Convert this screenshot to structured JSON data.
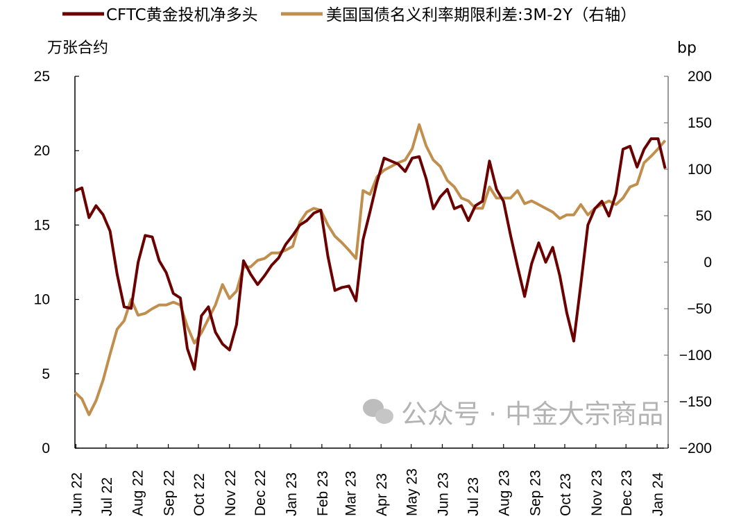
{
  "chart_data": {
    "type": "line",
    "title": "",
    "xlabel": "",
    "ylabel_left": "万张合约",
    "ylabel_right": "bp",
    "ylim_left": [
      0,
      25
    ],
    "yticks_left": [
      0,
      5,
      10,
      15,
      20,
      25
    ],
    "ylim_right": [
      -200,
      200
    ],
    "yticks_right": [
      -200,
      -150,
      -100,
      -50,
      0,
      50,
      100,
      150,
      200
    ],
    "xlim": [
      "2022-05-31",
      "2024-01-12"
    ],
    "xtick_labels": [
      "Jun 22",
      "Jul 22",
      "Aug 22",
      "Sep 22",
      "Oct 22",
      "Nov 22",
      "Dec 22",
      "Jan 23",
      "Feb 23",
      "Mar 23",
      "Apr 23",
      "May 23",
      "Jun 23",
      "Jul 23",
      "Aug 23",
      "Sep 23",
      "Oct 23",
      "Nov 23",
      "Dec 23",
      "Jan 24"
    ],
    "xtick_dates": [
      "2022-06-01",
      "2022-07-01",
      "2022-08-01",
      "2022-09-01",
      "2022-10-01",
      "2022-11-01",
      "2022-12-01",
      "2023-01-01",
      "2023-02-01",
      "2023-03-01",
      "2023-04-01",
      "2023-05-01",
      "2023-06-01",
      "2023-07-01",
      "2023-08-01",
      "2023-09-01",
      "2023-10-01",
      "2023-11-01",
      "2023-12-01",
      "2024-01-01"
    ],
    "grid": false,
    "legend_placement": "top",
    "x": [
      "2022-05-31",
      "2022-06-07",
      "2022-06-14",
      "2022-06-21",
      "2022-06-28",
      "2022-07-05",
      "2022-07-12",
      "2022-07-19",
      "2022-07-26",
      "2022-08-02",
      "2022-08-09",
      "2022-08-16",
      "2022-08-23",
      "2022-08-30",
      "2022-09-06",
      "2022-09-13",
      "2022-09-20",
      "2022-09-27",
      "2022-10-04",
      "2022-10-11",
      "2022-10-18",
      "2022-10-25",
      "2022-11-01",
      "2022-11-08",
      "2022-11-15",
      "2022-11-22",
      "2022-11-29",
      "2022-12-06",
      "2022-12-13",
      "2022-12-20",
      "2022-12-27",
      "2023-01-03",
      "2023-01-10",
      "2023-01-17",
      "2023-01-24",
      "2023-01-31",
      "2023-02-07",
      "2023-02-14",
      "2023-02-21",
      "2023-02-28",
      "2023-03-07",
      "2023-03-14",
      "2023-03-21",
      "2023-03-28",
      "2023-04-04",
      "2023-04-11",
      "2023-04-18",
      "2023-04-25",
      "2023-05-02",
      "2023-05-09",
      "2023-05-16",
      "2023-05-23",
      "2023-05-30",
      "2023-06-06",
      "2023-06-13",
      "2023-06-20",
      "2023-06-27",
      "2023-07-04",
      "2023-07-11",
      "2023-07-18",
      "2023-07-25",
      "2023-08-01",
      "2023-08-08",
      "2023-08-15",
      "2023-08-22",
      "2023-08-29",
      "2023-09-05",
      "2023-09-12",
      "2023-09-19",
      "2023-09-26",
      "2023-10-03",
      "2023-10-10",
      "2023-10-17",
      "2023-10-24",
      "2023-10-31",
      "2023-11-07",
      "2023-11-14",
      "2023-11-21",
      "2023-11-28",
      "2023-12-05",
      "2023-12-12",
      "2023-12-19",
      "2023-12-26",
      "2024-01-02",
      "2024-01-09"
    ],
    "series": [
      {
        "name": "CFTC黄金投机净多头",
        "axis": "left",
        "color": "#6b0000",
        "values": [
          17.3,
          17.5,
          15.5,
          16.3,
          15.7,
          14.6,
          11.7,
          9.5,
          9.4,
          12.5,
          14.3,
          14.2,
          12.6,
          11.8,
          10.4,
          10.1,
          6.7,
          5.3,
          8.9,
          9.5,
          7.8,
          7.0,
          6.6,
          8.3,
          12.6,
          11.7,
          11.0,
          11.6,
          12.3,
          12.8,
          13.7,
          14.3,
          15.0,
          15.3,
          15.8,
          16.0,
          12.9,
          10.6,
          10.8,
          10.9,
          9.9,
          14.0,
          15.9,
          17.9,
          19.5,
          19.3,
          19.1,
          18.6,
          19.5,
          19.6,
          18.1,
          16.1,
          16.9,
          17.4,
          16.1,
          16.3,
          15.3,
          16.3,
          16.6,
          19.3,
          17.4,
          16.6,
          14.3,
          12.2,
          10.2,
          12.4,
          13.8,
          12.5,
          13.5,
          11.6,
          9.1,
          7.2,
          11.0,
          15.0,
          16.1,
          16.6,
          15.6,
          17.1,
          20.1,
          20.3,
          18.9,
          20.1,
          20.8,
          20.8,
          18.8
        ]
      },
      {
        "name": "美国国债名义利率期限利差:3M-2Y（右轴）",
        "axis": "right",
        "color": "#c08f4e",
        "values": [
          -140,
          -147,
          -164,
          -149,
          -127,
          -99,
          -72,
          -63,
          -40,
          -57,
          -55,
          -50,
          -46,
          -46,
          -43,
          -46,
          -69,
          -87,
          -76,
          -61,
          -46,
          -24,
          -39,
          -31,
          -5,
          -5,
          2,
          4,
          10,
          10,
          13,
          17,
          43,
          54,
          58,
          56,
          40,
          28,
          21,
          13,
          4,
          77,
          73,
          92,
          99,
          103,
          107,
          110,
          122,
          148,
          125,
          110,
          103,
          88,
          81,
          69,
          66,
          58,
          58,
          81,
          69,
          69,
          69,
          77,
          63,
          66,
          62,
          58,
          54,
          47,
          51,
          51,
          62,
          51,
          58,
          62,
          66,
          62,
          69,
          81,
          84,
          107,
          114,
          122,
          131
        ]
      }
    ]
  },
  "watermark": "公众号 · 中金大宗商品"
}
